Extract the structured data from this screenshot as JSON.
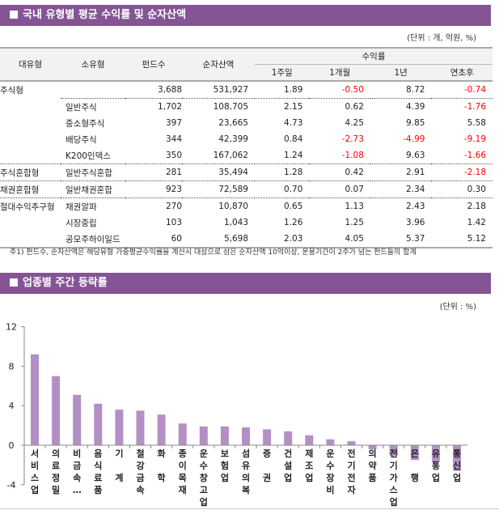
{
  "section1": {
    "title": "국내 유형별 평균 수익률 및 순자산액",
    "unit": "(단위 : 개, 억원, %)",
    "headers": {
      "major": "대유형",
      "minor": "소유형",
      "funds": "펀드수",
      "assets": "순자산액",
      "returns": "수익률",
      "w1": "1주일",
      "m1": "1개월",
      "y1": "1년",
      "ytd": "연초후"
    },
    "rows": [
      {
        "major": "주식형",
        "minor": "",
        "funds": "3,688",
        "assets": "531,927",
        "w1": "1.89",
        "m1": "-0.50",
        "y1": "8.72",
        "ytd": "-0.74"
      },
      {
        "major": "",
        "minor": "일반주식",
        "funds": "1,702",
        "assets": "108,705",
        "w1": "2.15",
        "m1": "0.62",
        "y1": "4.39",
        "ytd": "-1.76"
      },
      {
        "major": "",
        "minor": "중소형주식",
        "funds": "397",
        "assets": "23,665",
        "w1": "4.73",
        "m1": "4.25",
        "y1": "9.85",
        "ytd": "5.58"
      },
      {
        "major": "",
        "minor": "배당주식",
        "funds": "344",
        "assets": "42,399",
        "w1": "0.84",
        "m1": "-2.73",
        "y1": "-4.99",
        "ytd": "-9.19"
      },
      {
        "major": "",
        "minor": "K200인덱스",
        "funds": "350",
        "assets": "167,062",
        "w1": "1.24",
        "m1": "-1.08",
        "y1": "9.63",
        "ytd": "-1.66"
      },
      {
        "major": "주식혼합형",
        "minor": "일반주식혼합",
        "funds": "281",
        "assets": "35,494",
        "w1": "1.28",
        "m1": "0.42",
        "y1": "2.91",
        "ytd": "-2.18"
      },
      {
        "major": "채권혼합형",
        "minor": "일반채권혼합",
        "funds": "923",
        "assets": "72,589",
        "w1": "0.70",
        "m1": "0.07",
        "y1": "2.34",
        "ytd": "0.30"
      },
      {
        "major": "절대수익추구형",
        "minor": "채권알파",
        "funds": "270",
        "assets": "10,870",
        "w1": "0.65",
        "m1": "1.13",
        "y1": "2.43",
        "ytd": "2.18"
      },
      {
        "major": "",
        "minor": "시장중립",
        "funds": "103",
        "assets": "1,043",
        "w1": "1.26",
        "m1": "1.25",
        "y1": "3.96",
        "ytd": "1.42"
      },
      {
        "major": "",
        "minor": "공모주하이일드",
        "funds": "60",
        "assets": "5,698",
        "w1": "2.03",
        "m1": "4.05",
        "y1": "5.37",
        "ytd": "5.12"
      }
    ],
    "note": "주1) 펀드수, 순자산액은 해당유형 가중평균수익률을 계산시 대상으로 삼은 순자산액 10억이상, 운용기간이 2주가 넘는 펀드들의 합계"
  },
  "section2": {
    "title": "업종별 주간 등락률",
    "unit": "(단위 : %)"
  },
  "colors": {
    "header_bar": "#845494",
    "bar": "#b48fc4",
    "negative": "#ff0000"
  },
  "chart_data": {
    "type": "bar",
    "ylim": [
      -4,
      12
    ],
    "yticks": [
      "12",
      "8",
      "4",
      "0",
      "-4"
    ],
    "grid": false,
    "categories": [
      "서비스업",
      "의료정밀",
      "비금속…",
      "음식료품",
      "기 계",
      "철강금속",
      "화 학",
      "종이목재",
      "운수창고업",
      "보험업",
      "섬유의복",
      "증 권",
      "건설업",
      "제조업",
      "운수장비",
      "전기전자",
      "의약품",
      "전기가스업",
      "은 행",
      "유통업",
      "통신업"
    ],
    "values": [
      9.2,
      7.0,
      5.1,
      4.2,
      3.6,
      3.5,
      3.1,
      2.2,
      1.9,
      1.9,
      1.8,
      1.6,
      1.4,
      1.0,
      0.6,
      0.4,
      -0.4,
      -1.1,
      -1.5,
      -1.7,
      -2.6
    ]
  }
}
